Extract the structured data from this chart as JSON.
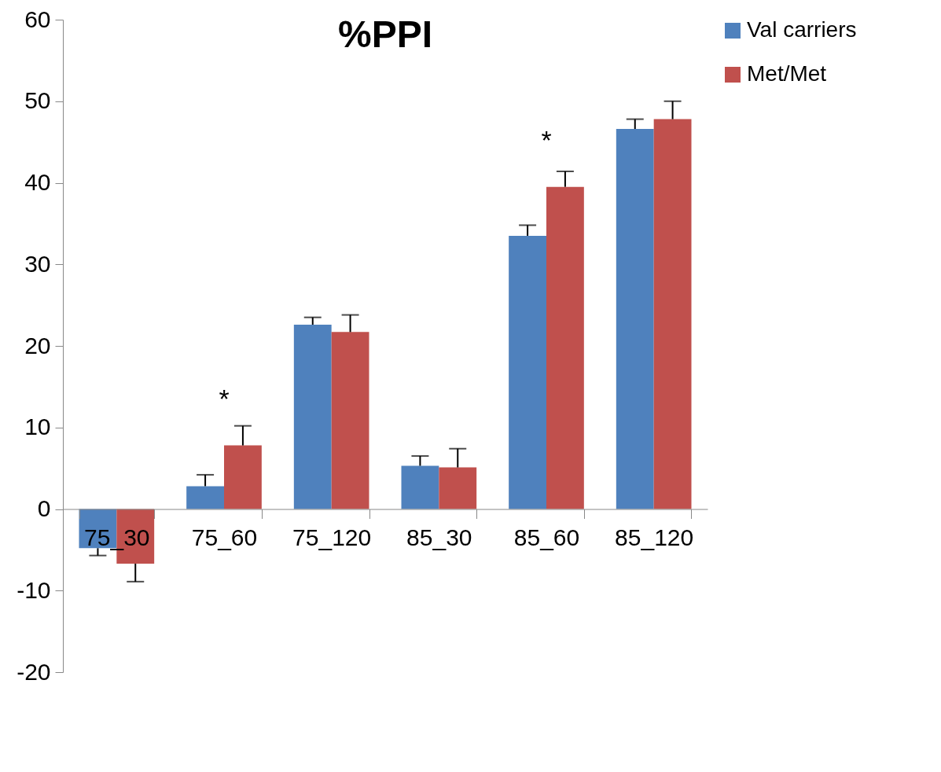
{
  "chart_data": {
    "type": "bar",
    "title": "%PPI",
    "categories": [
      "75_30",
      "75_60",
      "75_120",
      "85_30",
      "85_60",
      "85_120"
    ],
    "series": [
      {
        "name": "Val carriers",
        "color": "#4f81bd",
        "values": [
          -4.8,
          2.8,
          22.6,
          5.3,
          33.5,
          46.6
        ],
        "errors": [
          [
            -5.7,
            -4.8
          ],
          [
            2.8,
            4.2
          ],
          [
            22.6,
            23.5
          ],
          [
            5.3,
            6.5
          ],
          [
            33.5,
            34.8
          ],
          [
            46.6,
            47.8
          ]
        ]
      },
      {
        "name": "Met/Met",
        "color": "#c0504d",
        "values": [
          -6.7,
          7.8,
          21.7,
          5.1,
          39.5,
          47.8
        ],
        "errors": [
          [
            -8.9,
            -6.7
          ],
          [
            7.8,
            10.2
          ],
          [
            21.7,
            23.8
          ],
          [
            5.1,
            7.4
          ],
          [
            39.5,
            41.4
          ],
          [
            47.8,
            50.0
          ]
        ]
      }
    ],
    "annotations": [
      {
        "text": "*",
        "x": "75_60",
        "y": 7.8
      },
      {
        "text": "*",
        "x": "85_60",
        "y": 39.5
      }
    ],
    "ylim": [
      -20,
      60
    ],
    "yticks": [
      -20,
      -10,
      0,
      10,
      20,
      30,
      40,
      50,
      60
    ],
    "grid": false,
    "legend": "right"
  }
}
